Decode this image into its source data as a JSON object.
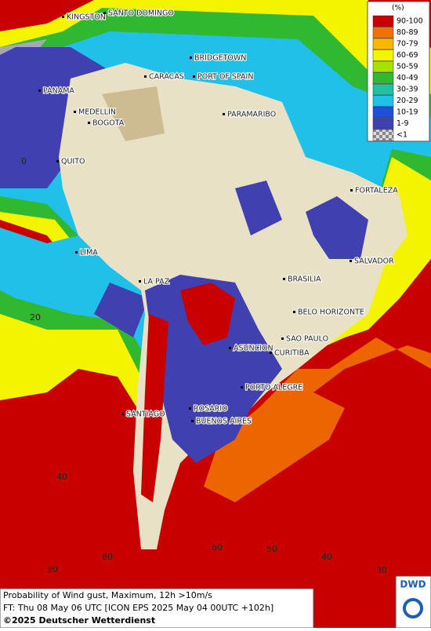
{
  "map": {
    "cities": [
      "KINGSTON",
      "SANTO DOMINGO",
      "BRIDGETOWN",
      "CARACAS",
      "PORT OF SPAIN",
      "PANAMA",
      "MEDELLIN",
      "BOGOTA",
      "PARAMARIBO",
      "QUITO",
      "FORTALEZA",
      "LIMA",
      "SALVADOR",
      "LA PAZ",
      "BRASILIA",
      "BELO HORIZONTE",
      "SAO PAULO",
      "ASUNCION",
      "CURITIBA",
      "PORTO ALEGRE",
      "SANTIAGO",
      "ROSARIO",
      "BUENOS AIRES"
    ],
    "grid_labels": [
      "0",
      "20",
      "40",
      "90",
      "80",
      "60",
      "50",
      "40",
      "30"
    ],
    "legend": {
      "title": "(%)",
      "entries": [
        {
          "label": "90-100",
          "color": "#c80000"
        },
        {
          "label": "80-89",
          "color": "#f07000"
        },
        {
          "label": "70-79",
          "color": "#f8b800"
        },
        {
          "label": "60-69",
          "color": "#f4f400"
        },
        {
          "label": "50-59",
          "color": "#a8e000"
        },
        {
          "label": "40-49",
          "color": "#30b830"
        },
        {
          "label": "30-39",
          "color": "#20c0a0"
        },
        {
          "label": "20-29",
          "color": "#20c0e8"
        },
        {
          "label": "10-19",
          "color": "#2050d8"
        },
        {
          "label": "1-9",
          "color": "#4040b0"
        },
        {
          "label": "<1",
          "color": "checker"
        }
      ]
    },
    "footer": {
      "line1": "Probability of Wind gust, Maximum, 12h >10m/s",
      "line2": "FT: Thu 08 May 06 UTC [ICON EPS 2025 May 04 00UTC +102h]",
      "line3": "©2025 Deutscher Wetterdienst",
      "logo": "DWD"
    }
  }
}
